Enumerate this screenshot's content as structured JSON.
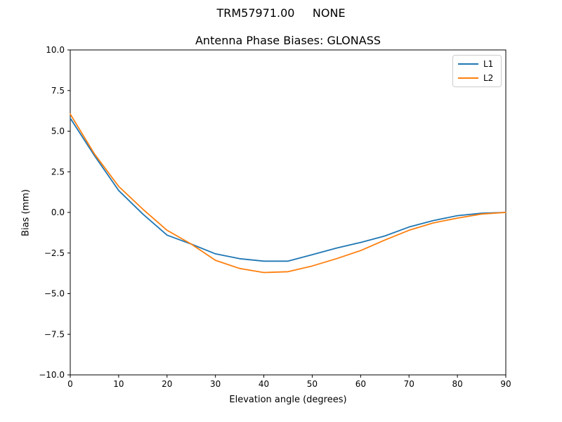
{
  "figure": {
    "suptitle": "TRM57971.00     NONE"
  },
  "chart_data": {
    "type": "line",
    "title": "Antenna Phase Biases: GLONASS",
    "xlabel": "Elevation angle (degrees)",
    "ylabel": "Bias (mm)",
    "xlim": [
      0,
      90
    ],
    "ylim": [
      -10,
      10
    ],
    "grid": false,
    "legend_position": "upper right",
    "xticks": [
      0,
      10,
      20,
      30,
      40,
      50,
      60,
      70,
      80,
      90
    ],
    "xtick_labels": [
      "0",
      "10",
      "20",
      "30",
      "40",
      "50",
      "60",
      "70",
      "80",
      "90"
    ],
    "yticks": [
      -10,
      -7.5,
      -5,
      -2.5,
      0,
      2.5,
      5,
      7.5,
      10
    ],
    "ytick_labels": [
      "−10.0",
      "−7.5",
      "−5.0",
      "−2.5",
      "0.0",
      "2.5",
      "5.0",
      "7.5",
      "10.0"
    ],
    "x": [
      0,
      5,
      10,
      15,
      20,
      25,
      30,
      35,
      40,
      45,
      50,
      55,
      60,
      65,
      70,
      75,
      80,
      85,
      90
    ],
    "series": [
      {
        "name": "L1",
        "color": "#1f77b4",
        "values": [
          5.8,
          3.5,
          1.35,
          -0.1,
          -1.4,
          -1.95,
          -2.55,
          -2.85,
          -3.0,
          -3.0,
          -2.6,
          -2.2,
          -1.85,
          -1.45,
          -0.9,
          -0.5,
          -0.2,
          -0.05,
          0.0
        ]
      },
      {
        "name": "L2",
        "color": "#ff7f0e",
        "values": [
          6.05,
          3.6,
          1.6,
          0.2,
          -1.1,
          -1.95,
          -2.95,
          -3.45,
          -3.7,
          -3.65,
          -3.3,
          -2.85,
          -2.35,
          -1.7,
          -1.1,
          -0.65,
          -0.35,
          -0.1,
          0.0
        ]
      }
    ]
  }
}
